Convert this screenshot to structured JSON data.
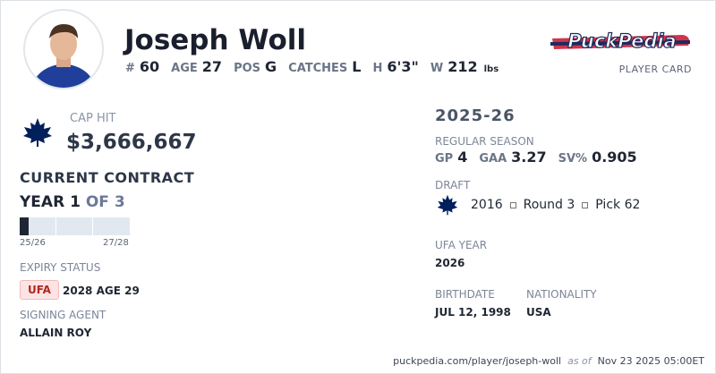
{
  "header": {
    "name": "Joseph Woll",
    "stats": [
      {
        "label": "#",
        "value": "60"
      },
      {
        "label": "AGE",
        "value": "27"
      },
      {
        "label": "POS",
        "value": "G"
      },
      {
        "label": "CATCHES",
        "value": "L"
      },
      {
        "label": "H",
        "value": "6'3\""
      },
      {
        "label": "W",
        "value": "212",
        "unit": "lbs"
      }
    ],
    "logo": "PuckPedia",
    "card_label": "PLAYER CARD"
  },
  "contract": {
    "cap_hit_label": "CAP HIT",
    "cap_hit": "$3,666,667",
    "title": "CURRENT CONTRACT",
    "year": "YEAR 1",
    "of": "OF 3",
    "bar_start": "25/26",
    "bar_end": "27/28",
    "expiry_label": "EXPIRY STATUS",
    "expiry_badge": "UFA",
    "expiry_detail": "2028 AGE 29",
    "agent_label": "SIGNING AGENT",
    "agent": "ALLAIN ROY"
  },
  "season": {
    "title": "2025-26",
    "label": "REGULAR SEASON",
    "stats": [
      {
        "label": "GP",
        "value": "4"
      },
      {
        "label": "GAA",
        "value": "3.27"
      },
      {
        "label": "SV%",
        "value": "0.905"
      }
    ]
  },
  "draft": {
    "label": "DRAFT",
    "year": "2016",
    "round": "Round 3",
    "pick": "Pick 62"
  },
  "ufa": {
    "label": "UFA YEAR",
    "value": "2026"
  },
  "bio": {
    "birth_label": "BIRTHDATE",
    "birth": "JUL 12, 1998",
    "nat_label": "NATIONALITY",
    "nat": "USA"
  },
  "footer": {
    "url": "puckpedia.com/player/joseph-woll",
    "as_of": "as of",
    "date": "Nov 23 2025 05:00ET"
  }
}
